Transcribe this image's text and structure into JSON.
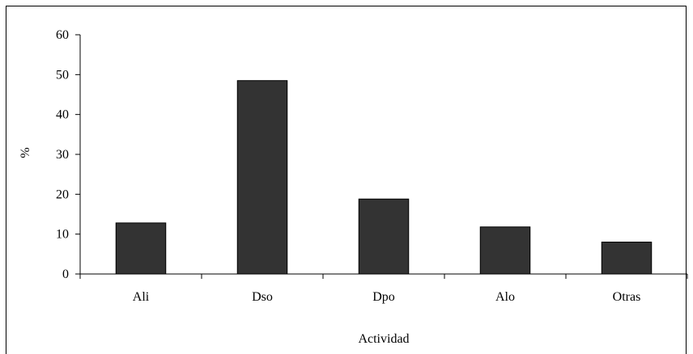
{
  "chart_data": {
    "type": "bar",
    "categories": [
      "Ali",
      "Dso",
      "Dpo",
      "Alo",
      "Otras"
    ],
    "values": [
      12.8,
      48.5,
      18.8,
      11.8,
      8.0
    ],
    "title": "",
    "xlabel": "Actividad",
    "ylabel": "%",
    "ylim": [
      0,
      60
    ],
    "yticks": [
      0,
      10,
      20,
      30,
      40,
      50,
      60
    ],
    "bar_color": "#333333",
    "grid": false,
    "legend": "none"
  }
}
